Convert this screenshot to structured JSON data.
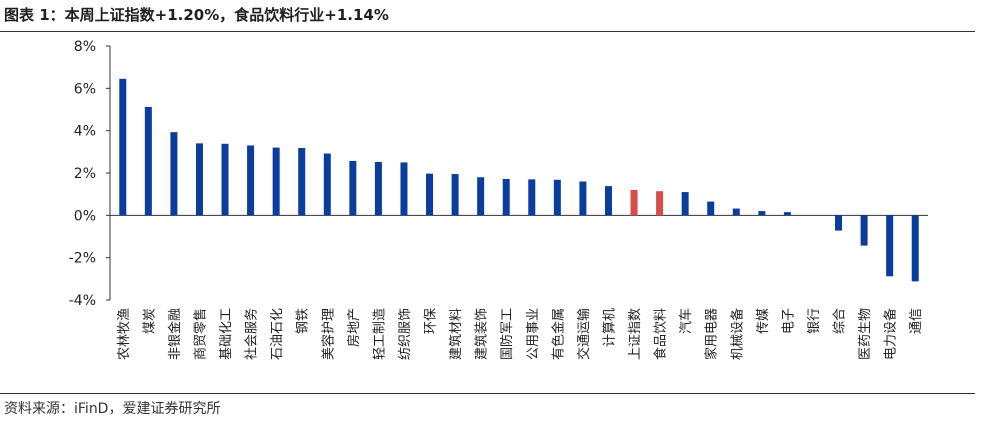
{
  "title": "图表 1：本周上证指数+1.20%，食品饮料行业+1.14%",
  "source": "资料来源：iFinD，爱建证券研究所",
  "colors": {
    "default": "#0b3d9c",
    "highlight": "#d94c4c"
  },
  "chart_data": {
    "type": "bar",
    "title": "图表 1：本周上证指数+1.20%，食品饮料行业+1.14%",
    "xlabel": "",
    "ylabel": "",
    "ylim": [
      -4,
      8
    ],
    "yticks": [
      -4,
      -2,
      0,
      2,
      4,
      6,
      8
    ],
    "ytick_labels": [
      "-4%",
      "-2%",
      "0%",
      "2%",
      "4%",
      "6%",
      "8%"
    ],
    "grid": false,
    "legend": "none",
    "categories": [
      "农林牧渔",
      "煤炭",
      "非银金融",
      "商贸零售",
      "基础化工",
      "社会服务",
      "石油石化",
      "钢铁",
      "美容护理",
      "房地产",
      "轻工制造",
      "纺织服饰",
      "环保",
      "建筑材料",
      "建筑装饰",
      "国防军工",
      "公用事业",
      "有色金属",
      "交通运输",
      "计算机",
      "上证指数",
      "食品饮料",
      "汽车",
      "家用电器",
      "机械设备",
      "传媒",
      "电子",
      "银行",
      "综合",
      "医药生物",
      "电力设备",
      "通信"
    ],
    "values": [
      6.45,
      5.12,
      3.93,
      3.4,
      3.38,
      3.3,
      3.2,
      3.18,
      2.92,
      2.57,
      2.52,
      2.5,
      1.97,
      1.95,
      1.8,
      1.72,
      1.7,
      1.68,
      1.6,
      1.38,
      1.2,
      1.14,
      1.1,
      0.65,
      0.32,
      0.2,
      0.15,
      0.0,
      -0.72,
      -1.43,
      -2.88,
      -3.12
    ],
    "highlight": [
      "上证指数",
      "食品饮料"
    ]
  }
}
